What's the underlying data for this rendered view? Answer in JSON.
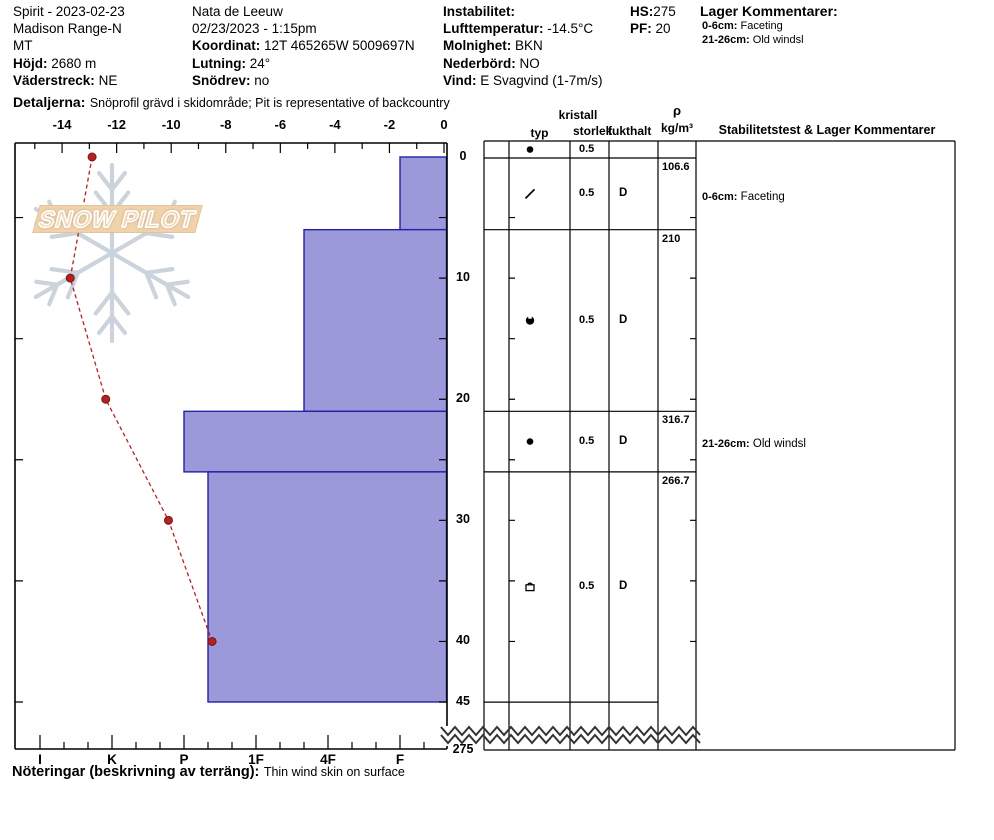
{
  "header": {
    "col1": {
      "title": "Spirit - 2023-02-23",
      "range": "Madison Range-N",
      "state": "MT",
      "hojd_label": "Höjd:",
      "hojd": "2680 m",
      "vaderstreck_label": "Väderstreck:",
      "vaderstreck": "NE"
    },
    "col2": {
      "observer": "Nata de Leeuw",
      "datetime": "02/23/2023 - 1:15pm",
      "koordinat_label": "Koordinat:",
      "koordinat": "12T 465265W 5009697N",
      "lutning_label": "Lutning:",
      "lutning": "24°",
      "snodrev_label": "Snödrev:",
      "snodrev": "no"
    },
    "col3": {
      "instabilitet_label": "Instabilitet:",
      "lufttemperatur_label": "Lufttemperatur:",
      "lufttemperatur": "-14.5°C",
      "molnighet_label": "Molnighet:",
      "molnighet": "BKN",
      "nederbord_label": "Nederbörd:",
      "nederbord": "NO",
      "vind_label": "Vind:",
      "vind": "E Svagvind (1-7m/s)"
    },
    "col4": {
      "hs_label": "HS:",
      "hs": "275",
      "pf_label": "PF:",
      "pf": "20"
    },
    "col5": {
      "lager_label": "Lager Kommentarer:",
      "comments": [
        {
          "range": "0-6cm:",
          "text": "Faceting"
        },
        {
          "range": "21-26cm:",
          "text": "Old windsl"
        }
      ]
    },
    "detaljerna_label": "Detaljerna:",
    "detaljerna": "Snöprofil grävd i skidområde;  Pit is representative of backcountry"
  },
  "watermark": {
    "text": "SNOW PILOT"
  },
  "notes": {
    "label": "Nöteringar (beskrivning av terräng):",
    "text": "Thin wind skin on surface"
  },
  "table": {
    "headers": {
      "typ": "typ",
      "kristall": "kristall",
      "storlek": "storlek",
      "fukthalt": "fukthalt",
      "rho": "ρ",
      "rho_unit": "kg/m³",
      "comments_header": "Stabilitetstest & Lager Kommentarer"
    },
    "rows": [
      {
        "top_cm": 0,
        "bottom_cm": 1,
        "grain_symbol": "filled-circle",
        "size_mm": "0.5",
        "wetness": "",
        "density": ""
      },
      {
        "top_cm": 1,
        "bottom_cm": 6,
        "grain_symbol": "slash",
        "size_mm": "0.5",
        "wetness": "D",
        "density": "106.6"
      },
      {
        "top_cm": 6,
        "bottom_cm": 21,
        "grain_symbol": "notched-circle",
        "size_mm": "0.5",
        "wetness": "D",
        "density": "210"
      },
      {
        "top_cm": 21,
        "bottom_cm": 26,
        "grain_symbol": "filled-circle",
        "size_mm": "0.5",
        "wetness": "D",
        "density": "316.7"
      },
      {
        "top_cm": 26,
        "bottom_cm": 45,
        "grain_symbol": "cup-square",
        "size_mm": "0.5",
        "wetness": "D",
        "density": "266.7"
      }
    ],
    "layer_comments": [
      {
        "range": "0-6cm:",
        "text": "Faceting"
      },
      {
        "range": "21-26cm:",
        "text": "Old windsl"
      }
    ]
  },
  "chart_data": {
    "type": "bar",
    "description": "Snow pit profile: layer hardness bars vs depth with snow temperature line",
    "temperature_axis": {
      "unit": "°C",
      "ticks": [
        -14,
        -12,
        -10,
        -8,
        -6,
        -4,
        -2,
        0
      ],
      "min": -15.5,
      "max": 0,
      "minor_step": 1
    },
    "hardness_axis": {
      "categories": [
        "I",
        "K",
        "P",
        "1F",
        "4F",
        "F"
      ]
    },
    "depth_axis": {
      "unit": "cm",
      "ticks": [
        0,
        10,
        20,
        30,
        40,
        45
      ],
      "minor_step_cm": 5,
      "profile_depth": 45,
      "total_snow_height": 275
    },
    "depth_break_label": "275",
    "temperature_series": [
      {
        "depth_cm": 0,
        "temp_c": -12.9
      },
      {
        "depth_cm": 10,
        "temp_c": -13.7
      },
      {
        "depth_cm": 20,
        "temp_c": -12.4
      },
      {
        "depth_cm": 30,
        "temp_c": -10.1
      },
      {
        "depth_cm": 40,
        "temp_c": -8.5
      }
    ],
    "hardness_layers": [
      {
        "top_cm": 0,
        "bottom_cm": 6,
        "hardness": "F"
      },
      {
        "top_cm": 6,
        "bottom_cm": 21,
        "hardness": "4F+"
      },
      {
        "top_cm": 21,
        "bottom_cm": 26,
        "hardness": "P"
      },
      {
        "top_cm": 26,
        "bottom_cm": 45,
        "hardness": "P-"
      }
    ],
    "colors": {
      "bar_fill": "#9b99d9",
      "bar_border": "#2222a6",
      "temperature_line": "#b22222",
      "watermark_banner": "#f1d3ab",
      "watermark_flake": "#cbd4dc"
    }
  }
}
